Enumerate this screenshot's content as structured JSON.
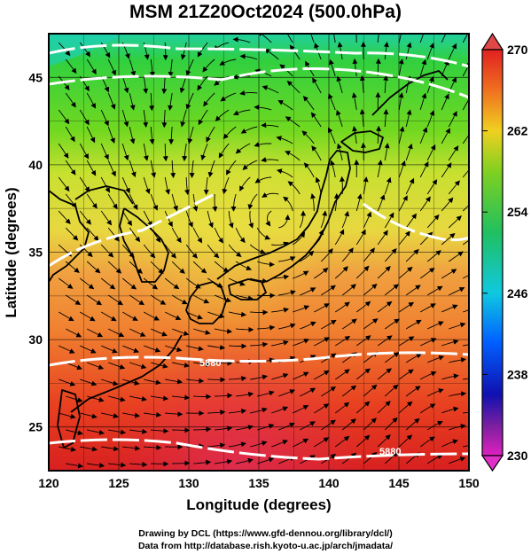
{
  "title": "MSM 21Z20Oct2024 (500.0hPa)",
  "x_axis": {
    "label": "Longitude (degrees)",
    "ticks": [
      "120",
      "125",
      "130",
      "135",
      "140",
      "145",
      "150"
    ],
    "range": [
      120,
      150
    ]
  },
  "y_axis": {
    "label": "Latitude  (degrees)",
    "ticks": [
      "25",
      "30",
      "35",
      "40",
      "45"
    ],
    "range": [
      22.5,
      47.5
    ]
  },
  "colorbar": {
    "ticks": [
      "270",
      "262",
      "254",
      "246",
      "238",
      "230"
    ],
    "range": [
      230,
      270
    ],
    "colors": [
      "#e020c0",
      "#1010b0",
      "#0070ff",
      "#10d0d0",
      "#20c020",
      "#d0e000",
      "#ff9000",
      "#e02020"
    ]
  },
  "contours": [
    {
      "label": "5880",
      "lat_position": "~29.5"
    },
    {
      "label": "5880",
      "lat_position": "~23.5"
    }
  ],
  "credits": {
    "line1": "Drawing by DCL (https://www.gfd-dennou.org/library/dcl/)",
    "line2": "Data from http://database.rish.kyoto-u.ac.jp/arch/jmadata/"
  }
}
